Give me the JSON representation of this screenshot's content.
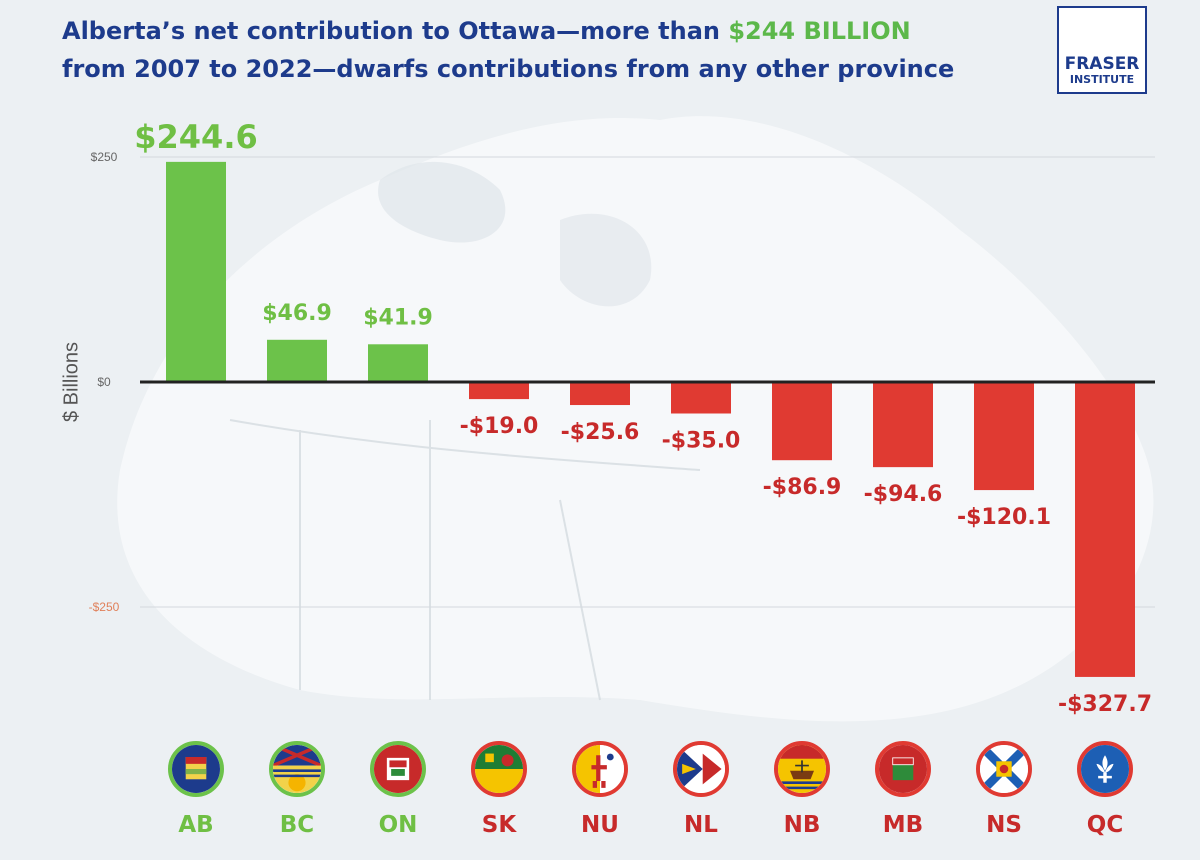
{
  "title": {
    "part1": "Alberta’s net contribution to Ottawa—more than ",
    "highlight": "$244 BILLION",
    "part2": "from 2007 to 2022—dwarfs contributions from any other province"
  },
  "logo": {
    "line1": "FRASER",
    "line2": "INSTITUTE"
  },
  "colors": {
    "title": "#1d3b8c",
    "highlight": "#5cb84a",
    "positive_bar": "#6cc24a",
    "negative_bar": "#e03a32",
    "positive_label": "#6fbf44",
    "negative_label": "#c72a2a",
    "zero_tick": "#222222",
    "neg_tick": "#e0805a"
  },
  "chart_data": {
    "type": "bar",
    "ylabel": "$ Billions",
    "ylim": [
      -330,
      260
    ],
    "yticks": [
      {
        "value": 250,
        "label": "$250"
      },
      {
        "value": 0,
        "label": "$0"
      },
      {
        "value": -250,
        "label": "-$250"
      }
    ],
    "categories": [
      "AB",
      "BC",
      "ON",
      "SK",
      "NU",
      "NL",
      "NB",
      "MB",
      "NS",
      "QC"
    ],
    "values": [
      244.6,
      46.9,
      41.9,
      -19.0,
      -25.6,
      -35.0,
      -86.9,
      -94.6,
      -120.1,
      -327.7
    ],
    "data_labels": [
      "$244.6",
      "$46.9",
      "$41.9",
      "-$19.0",
      "-$25.6",
      "-$35.0",
      "-$86.9",
      "-$94.6",
      "-$120.1",
      "-$327.7"
    ],
    "flag_icons": [
      "alberta-flag-icon",
      "british-columbia-flag-icon",
      "ontario-flag-icon",
      "saskatchewan-flag-icon",
      "nunavut-flag-icon",
      "newfoundland-flag-icon",
      "new-brunswick-flag-icon",
      "manitoba-flag-icon",
      "nova-scotia-flag-icon",
      "quebec-flag-icon"
    ],
    "gridlines": true
  }
}
